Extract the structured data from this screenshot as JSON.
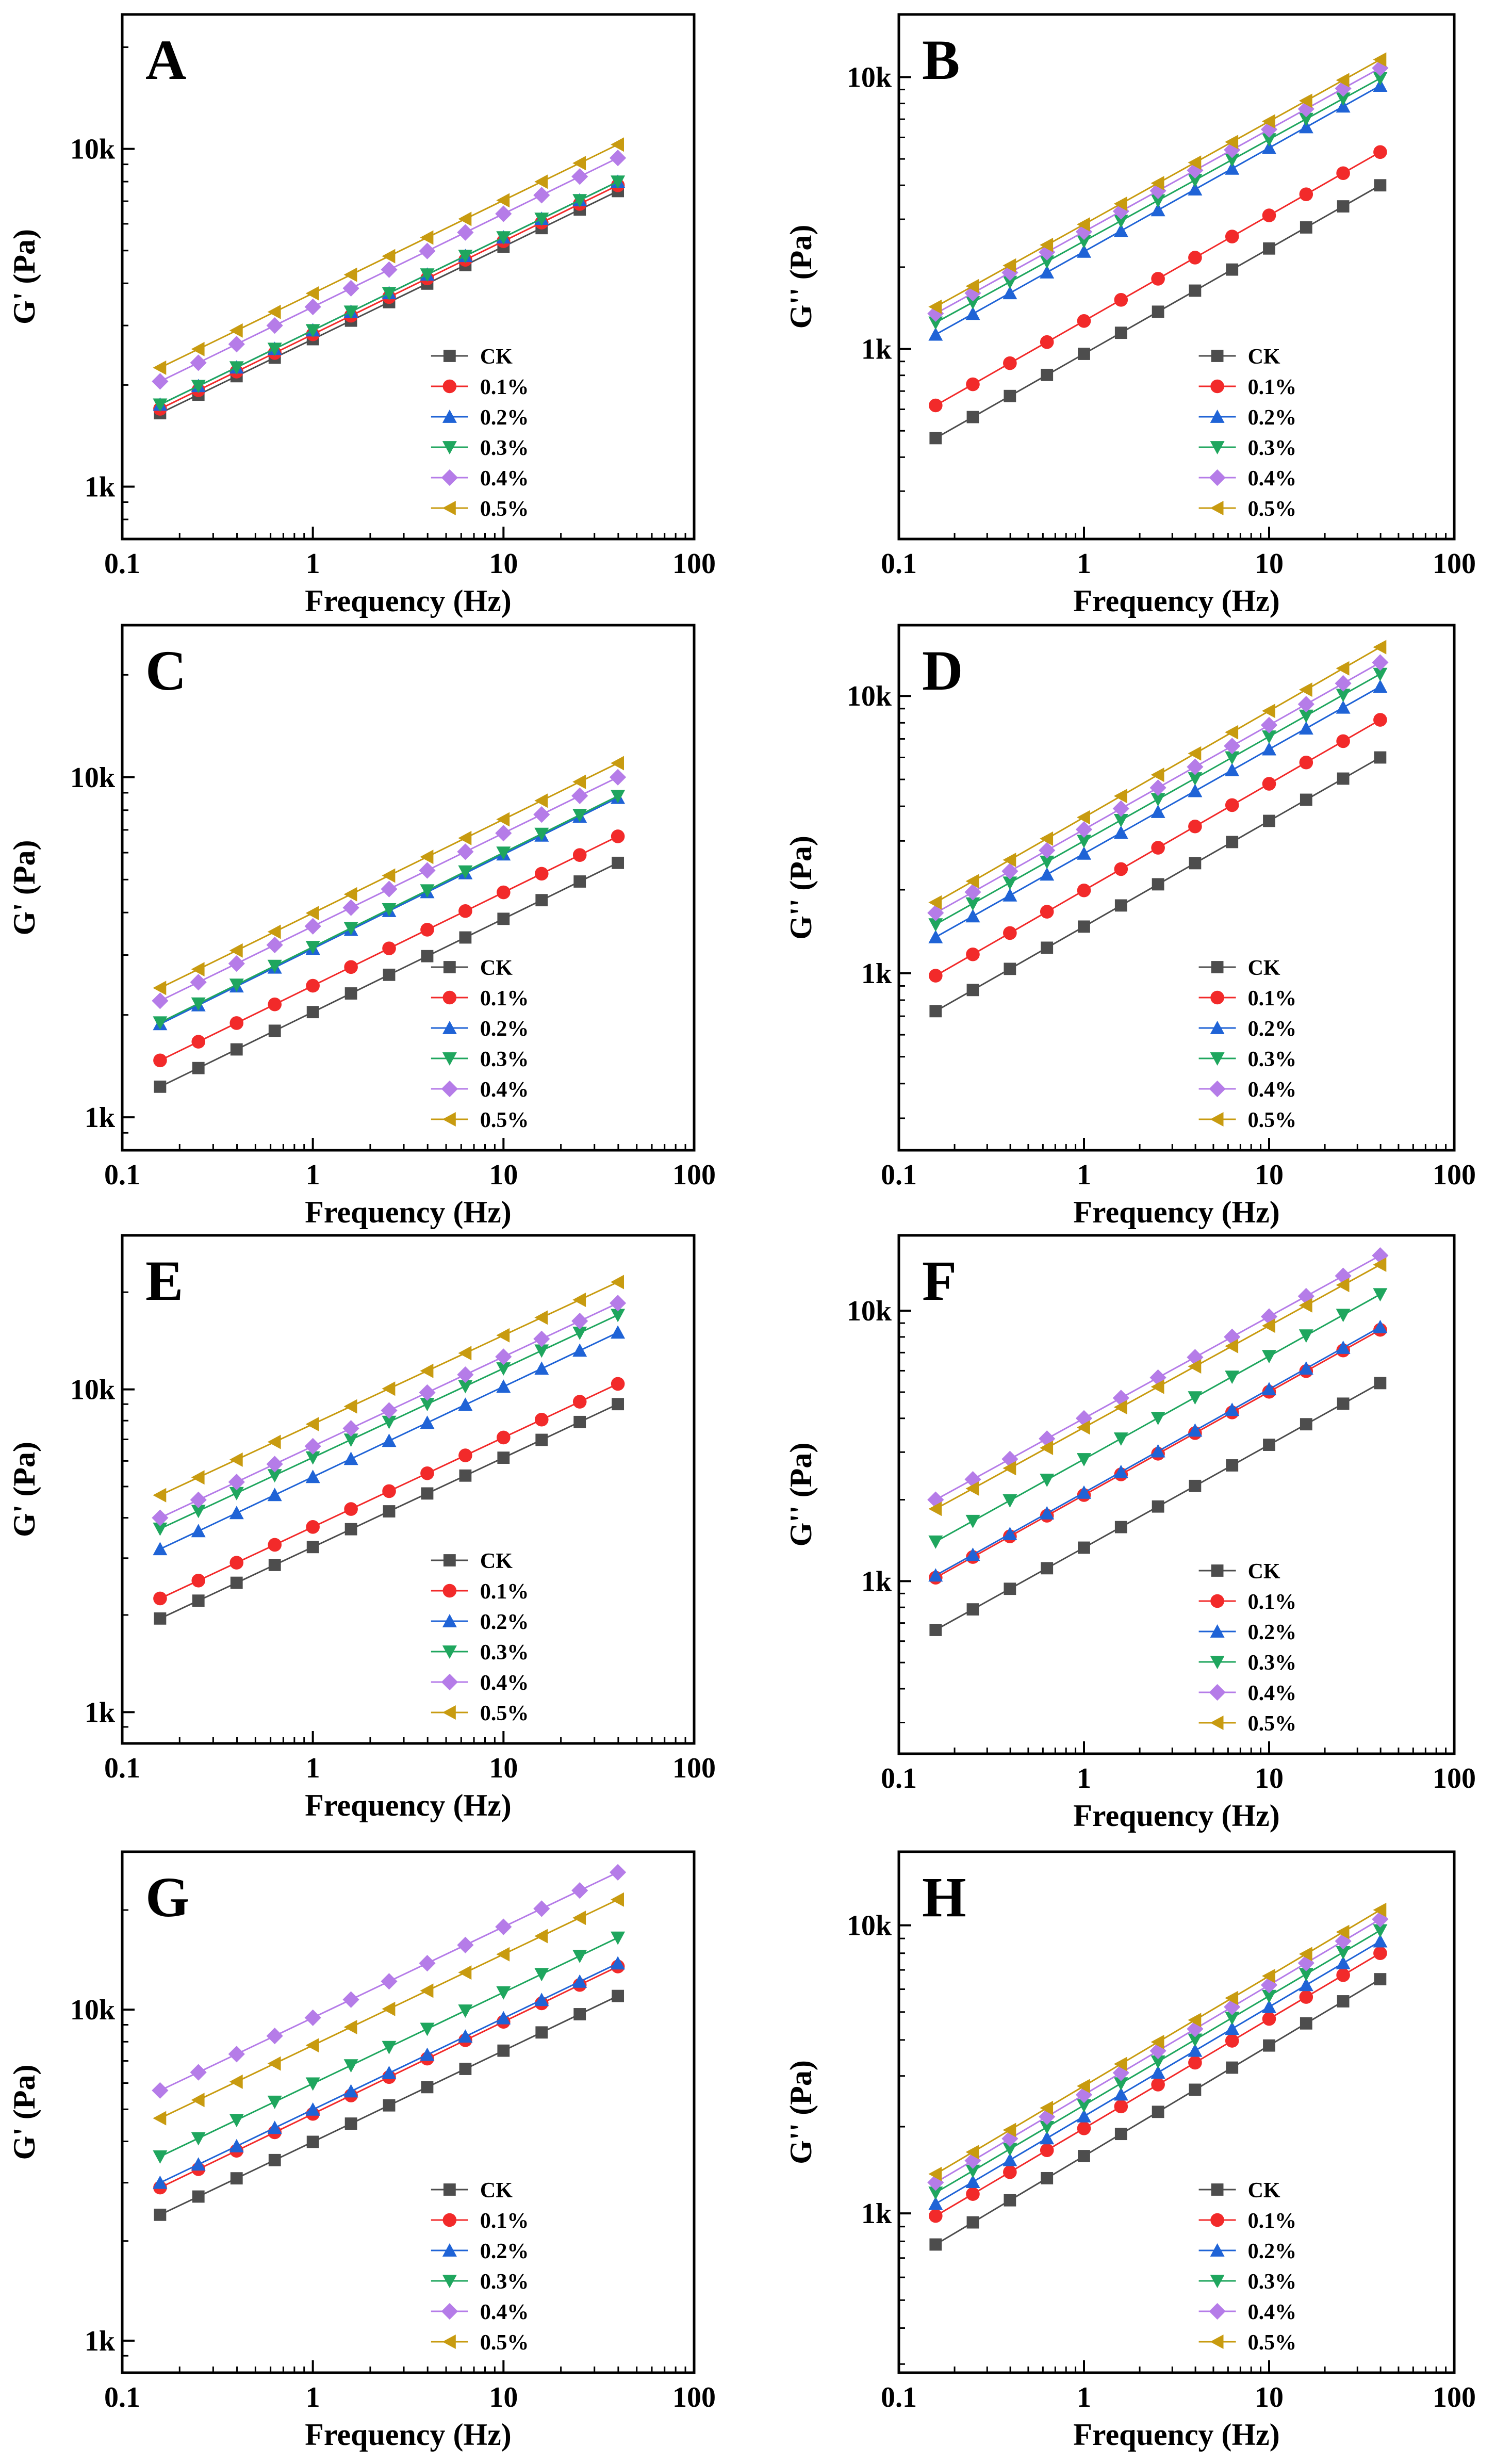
{
  "figure": {
    "series_names": [
      "CK",
      "0.1%",
      "0.2%",
      "0.3%",
      "0.4%",
      "0.5%"
    ],
    "series_colors": [
      "#4d4d4d",
      "#f22a2a",
      "#1f63d6",
      "#1fa65e",
      "#b57ce8",
      "#c89b10"
    ],
    "series_markers": [
      "square",
      "circle",
      "triangle-up",
      "triangle-down",
      "diamond",
      "triangle-left"
    ]
  },
  "chart_data": [
    {
      "panel": "A",
      "type": "line",
      "xscale": "log",
      "yscale": "log",
      "xlabel": "Frequency (Hz)",
      "ylabel": "G' (Pa)",
      "xlim": [
        0.1,
        100
      ],
      "ylim": [
        700,
        25000
      ],
      "x_ticks": [
        0.1,
        1,
        10,
        100
      ],
      "x_tick_labels": [
        "0.1",
        "1",
        "10",
        "100"
      ],
      "y_ticks": [
        1000,
        10000
      ],
      "y_tick_labels": [
        "1k",
        "10k"
      ],
      "legend": "bottom-right",
      "x": [
        0.158,
        0.251,
        0.398,
        0.631,
        1.0,
        1.585,
        2.512,
        3.981,
        6.31,
        10.0,
        15.85,
        25.12,
        39.81
      ],
      "series": [
        {
          "name": "CK",
          "start": 1650,
          "end": 7500
        },
        {
          "name": "0.1%",
          "start": 1700,
          "end": 7800
        },
        {
          "name": "0.2%",
          "start": 1750,
          "end": 8000
        },
        {
          "name": "0.3%",
          "start": 1750,
          "end": 8000
        },
        {
          "name": "0.4%",
          "start": 2050,
          "end": 9400
        },
        {
          "name": "0.5%",
          "start": 2250,
          "end": 10300
        }
      ]
    },
    {
      "panel": "B",
      "type": "line",
      "xscale": "log",
      "yscale": "log",
      "xlabel": "Frequency (Hz)",
      "ylabel": "G'' (Pa)",
      "xlim": [
        0.1,
        100
      ],
      "ylim": [
        200,
        17000
      ],
      "x_ticks": [
        0.1,
        1,
        10,
        100
      ],
      "x_tick_labels": [
        "0.1",
        "1",
        "10",
        "100"
      ],
      "y_ticks": [
        1000,
        10000
      ],
      "y_tick_labels": [
        "1k",
        "10k"
      ],
      "legend": "bottom-right",
      "x": [
        0.158,
        0.251,
        0.398,
        0.631,
        1.0,
        1.585,
        2.512,
        3.981,
        6.31,
        10.0,
        15.85,
        25.12,
        39.81
      ],
      "series": [
        {
          "name": "CK",
          "start": 470,
          "end": 4000
        },
        {
          "name": "0.1%",
          "start": 620,
          "end": 5300
        },
        {
          "name": "0.2%",
          "start": 1130,
          "end": 9300
        },
        {
          "name": "0.3%",
          "start": 1250,
          "end": 9900
        },
        {
          "name": "0.4%",
          "start": 1350,
          "end": 10800
        },
        {
          "name": "0.5%",
          "start": 1430,
          "end": 11600
        }
      ]
    },
    {
      "panel": "C",
      "type": "line",
      "xscale": "log",
      "yscale": "log",
      "xlabel": "Frequency (Hz)",
      "ylabel": "G' (Pa)",
      "xlim": [
        0.1,
        100
      ],
      "ylim": [
        800,
        28000
      ],
      "x_ticks": [
        0.1,
        1,
        10,
        100
      ],
      "x_tick_labels": [
        "0.1",
        "1",
        "10",
        "100"
      ],
      "y_ticks": [
        1000,
        10000
      ],
      "y_tick_labels": [
        "1k",
        "10k"
      ],
      "legend": "bottom-right",
      "x": [
        0.158,
        0.251,
        0.398,
        0.631,
        1.0,
        1.585,
        2.512,
        3.981,
        6.31,
        10.0,
        15.85,
        25.12,
        39.81
      ],
      "series": [
        {
          "name": "CK",
          "start": 1230,
          "end": 5600
        },
        {
          "name": "0.1%",
          "start": 1470,
          "end": 6700
        },
        {
          "name": "0.2%",
          "start": 1880,
          "end": 8700
        },
        {
          "name": "0.3%",
          "start": 1900,
          "end": 8800
        },
        {
          "name": "0.4%",
          "start": 2200,
          "end": 10000
        },
        {
          "name": "0.5%",
          "start": 2400,
          "end": 11000
        }
      ]
    },
    {
      "panel": "D",
      "type": "line",
      "xscale": "log",
      "yscale": "log",
      "xlabel": "Frequency (Hz)",
      "ylabel": "G'' (Pa)",
      "xlim": [
        0.1,
        100
      ],
      "ylim": [
        230,
        18000
      ],
      "x_ticks": [
        0.1,
        1,
        10,
        100
      ],
      "x_tick_labels": [
        "0.1",
        "1",
        "10",
        "100"
      ],
      "y_ticks": [
        1000,
        10000
      ],
      "y_tick_labels": [
        "1k",
        "10k"
      ],
      "legend": "bottom-right",
      "x": [
        0.158,
        0.251,
        0.398,
        0.631,
        1.0,
        1.585,
        2.512,
        3.981,
        6.31,
        10.0,
        15.85,
        25.12,
        39.81
      ],
      "series": [
        {
          "name": "CK",
          "start": 730,
          "end": 6000
        },
        {
          "name": "0.1%",
          "start": 980,
          "end": 8200
        },
        {
          "name": "0.2%",
          "start": 1350,
          "end": 10800
        },
        {
          "name": "0.3%",
          "start": 1500,
          "end": 12000
        },
        {
          "name": "0.4%",
          "start": 1650,
          "end": 13200
        },
        {
          "name": "0.5%",
          "start": 1800,
          "end": 15000
        }
      ]
    },
    {
      "panel": "E",
      "type": "line",
      "xscale": "log",
      "yscale": "log",
      "xlabel": "Frequency (Hz)",
      "ylabel": "G' (Pa)",
      "xlim": [
        0.1,
        100
      ],
      "ylim": [
        800,
        30000
      ],
      "x_ticks": [
        0.1,
        1,
        10,
        100
      ],
      "x_tick_labels": [
        "0.1",
        "1",
        "10",
        "100"
      ],
      "y_ticks": [
        1000,
        10000
      ],
      "y_tick_labels": [
        "1k",
        "10k"
      ],
      "legend": "bottom-right",
      "x": [
        0.158,
        0.251,
        0.398,
        0.631,
        1.0,
        1.585,
        2.512,
        3.981,
        6.31,
        10.0,
        15.85,
        25.12,
        39.81
      ],
      "series": [
        {
          "name": "CK",
          "start": 1950,
          "end": 9000
        },
        {
          "name": "0.1%",
          "start": 2250,
          "end": 10400
        },
        {
          "name": "0.2%",
          "start": 3200,
          "end": 15000
        },
        {
          "name": "0.3%",
          "start": 3700,
          "end": 17000
        },
        {
          "name": "0.4%",
          "start": 4000,
          "end": 18500
        },
        {
          "name": "0.5%",
          "start": 4700,
          "end": 21500
        }
      ]
    },
    {
      "panel": "F",
      "type": "line",
      "xscale": "log",
      "yscale": "log",
      "xlabel": "Frequency (Hz)",
      "ylabel": "G'' (Pa)",
      "xlim": [
        0.1,
        100
      ],
      "ylim": [
        230,
        19000
      ],
      "x_ticks": [
        0.1,
        1,
        10,
        100
      ],
      "x_tick_labels": [
        "0.1",
        "1",
        "10",
        "100"
      ],
      "y_ticks": [
        1000,
        10000
      ],
      "y_tick_labels": [
        "1k",
        "10k"
      ],
      "legend": "bottom-right",
      "x": [
        0.158,
        0.251,
        0.398,
        0.631,
        1.0,
        1.585,
        2.512,
        3.981,
        6.31,
        10.0,
        15.85,
        25.12,
        39.81
      ],
      "series": [
        {
          "name": "CK",
          "start": 660,
          "end": 5400
        },
        {
          "name": "0.1%",
          "start": 1030,
          "end": 8500
        },
        {
          "name": "0.2%",
          "start": 1050,
          "end": 8700
        },
        {
          "name": "0.3%",
          "start": 1400,
          "end": 11500
        },
        {
          "name": "0.4%",
          "start": 2000,
          "end": 16000
        },
        {
          "name": "0.5%",
          "start": 1850,
          "end": 14800
        }
      ]
    },
    {
      "panel": "G",
      "type": "line",
      "xscale": "log",
      "yscale": "log",
      "xlabel": "Frequency (Hz)",
      "ylabel": "G' (Pa)",
      "xlim": [
        0.1,
        100
      ],
      "ylim": [
        800,
        30000
      ],
      "x_ticks": [
        0.1,
        1,
        10,
        100
      ],
      "x_tick_labels": [
        "0.1",
        "1",
        "10",
        "100"
      ],
      "y_ticks": [
        1000,
        10000
      ],
      "y_tick_labels": [
        "1k",
        "10k"
      ],
      "legend": "bottom-right",
      "x": [
        0.158,
        0.251,
        0.398,
        0.631,
        1.0,
        1.585,
        2.512,
        3.981,
        6.31,
        10.0,
        15.85,
        25.12,
        39.81
      ],
      "series": [
        {
          "name": "CK",
          "start": 2400,
          "end": 11000
        },
        {
          "name": "0.1%",
          "start": 2900,
          "end": 13500
        },
        {
          "name": "0.2%",
          "start": 3000,
          "end": 13800
        },
        {
          "name": "0.3%",
          "start": 3600,
          "end": 16500
        },
        {
          "name": "0.4%",
          "start": 5700,
          "end": 26000
        },
        {
          "name": "0.5%",
          "start": 4700,
          "end": 21500
        }
      ]
    },
    {
      "panel": "H",
      "type": "line",
      "xscale": "log",
      "yscale": "log",
      "xlabel": "Frequency (Hz)",
      "ylabel": "G'' (Pa)",
      "xlim": [
        0.1,
        100
      ],
      "ylim": [
        280,
        18000
      ],
      "x_ticks": [
        0.1,
        1,
        10,
        100
      ],
      "x_tick_labels": [
        "0.1",
        "1",
        "10",
        "100"
      ],
      "y_ticks": [
        1000,
        10000
      ],
      "y_tick_labels": [
        "1k",
        "10k"
      ],
      "legend": "bottom-right",
      "x": [
        0.158,
        0.251,
        0.398,
        0.631,
        1.0,
        1.585,
        2.512,
        3.981,
        6.31,
        10.0,
        15.85,
        25.12,
        39.81
      ],
      "series": [
        {
          "name": "CK",
          "start": 780,
          "end": 6500
        },
        {
          "name": "0.1%",
          "start": 980,
          "end": 8000
        },
        {
          "name": "0.2%",
          "start": 1080,
          "end": 8800
        },
        {
          "name": "0.3%",
          "start": 1180,
          "end": 9600
        },
        {
          "name": "0.4%",
          "start": 1280,
          "end": 10500
        },
        {
          "name": "0.5%",
          "start": 1370,
          "end": 11300
        }
      ]
    }
  ]
}
